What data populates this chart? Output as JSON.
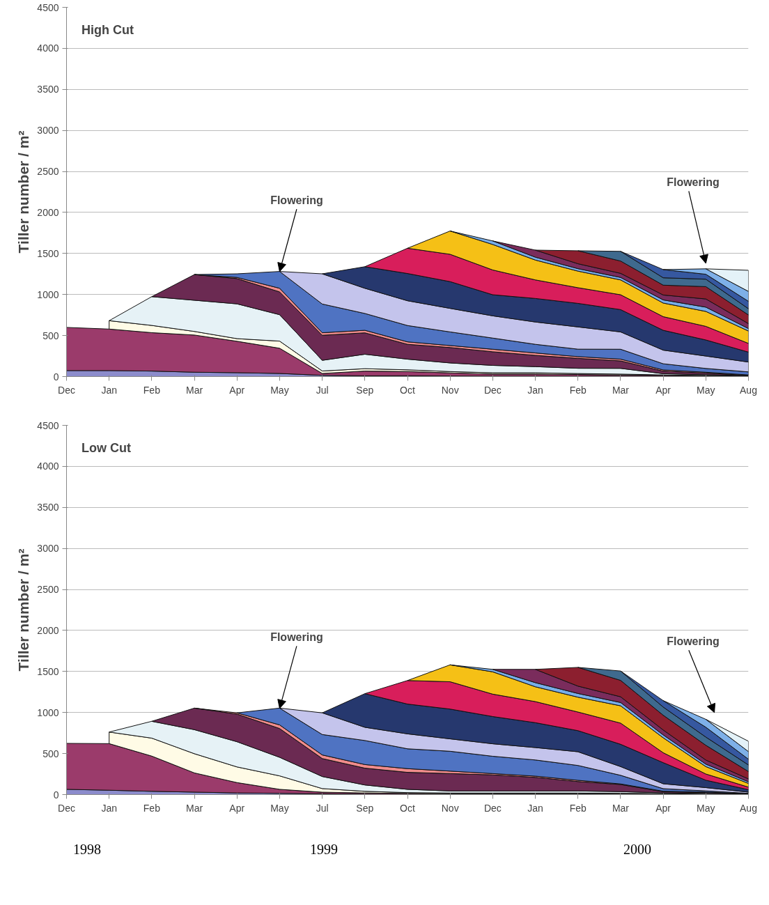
{
  "chart_data": [
    {
      "type": "area",
      "stacked": true,
      "title": "High Cut",
      "ylabel": "Tiller number / m²",
      "categories": [
        "Dec",
        "Jan",
        "Feb",
        "Mar",
        "Apr",
        "May",
        "Jul",
        "Sep",
        "Oct",
        "Nov",
        "Dec",
        "Jan",
        "Feb",
        "Mar",
        "Apr",
        "May",
        "Aug"
      ],
      "ylim": [
        0,
        4500
      ],
      "yticks": [
        0,
        500,
        1000,
        1500,
        2000,
        2500,
        3000,
        3500,
        4000,
        4500
      ],
      "grid": "y",
      "annotations": [
        {
          "text": "Flowering",
          "x": "May",
          "y": 1280
        },
        "Flowering"
      ],
      "series": [
        {
          "color": "#8c8ccc",
          "values": [
            73,
            73,
            67,
            53,
            47,
            38,
            15,
            9,
            10,
            6,
            5,
            5,
            5,
            5,
            5,
            3,
            0
          ]
        },
        {
          "color": "#9b3b6b",
          "values": [
            526,
            506,
            468,
            453,
            383,
            307,
            23,
            58,
            51,
            39,
            25,
            25,
            20,
            15,
            10,
            5,
            0
          ]
        },
        {
          "color": "#fffbe6",
          "values": [
            null,
            102,
            88,
            44,
            32,
            87,
            30,
            29,
            21,
            16,
            16,
            16,
            12,
            10,
            5,
            5,
            5
          ]
        },
        {
          "color": "#e6f2f6",
          "values": [
            null,
            0,
            351,
            380,
            424,
            322,
            130,
            176,
            130,
            105,
            90,
            75,
            64,
            70,
            15,
            10,
            5
          ]
        },
        {
          "color": "#6b2a52",
          "values": [
            null,
            null,
            0,
            313,
            308,
            278,
            305,
            261,
            181,
            188,
            166,
            137,
            121,
            91,
            31,
            20,
            5
          ]
        },
        {
          "color": "#f08c8c",
          "values": [
            null,
            null,
            null,
            0,
            14,
            44,
            31,
            31,
            30,
            24,
            31,
            30,
            21,
            21,
            15,
            10,
            5
          ]
        },
        {
          "color": "#4f73c2",
          "values": [
            null,
            null,
            null,
            0,
            44,
            205,
            350,
            205,
            199,
            166,
            136,
            105,
            91,
            121,
            75,
            46,
            37
          ]
        },
        {
          "color": "#c4c4ec",
          "values": [
            null,
            null,
            null,
            null,
            null,
            0,
            368,
            307,
            302,
            287,
            271,
            272,
            271,
            211,
            166,
            151,
            120
          ]
        },
        {
          "color": "#26386e",
          "values": [
            null,
            null,
            null,
            null,
            null,
            null,
            0,
            263,
            332,
            326,
            257,
            287,
            287,
            272,
            242,
            196,
            121
          ]
        },
        {
          "color": "#d81e5b",
          "values": [
            null,
            null,
            null,
            null,
            null,
            null,
            null,
            0,
            308,
            333,
            302,
            226,
            191,
            181,
            166,
            166,
            106
          ]
        },
        {
          "color": "#f5c016",
          "values": [
            null,
            null,
            null,
            null,
            null,
            null,
            null,
            null,
            0,
            284,
            311,
            242,
            202,
            181,
            166,
            182,
            151
          ]
        },
        {
          "color": "#78aee8",
          "values": [
            null,
            null,
            null,
            null,
            null,
            null,
            null,
            null,
            null,
            0,
            43,
            35,
            30,
            30,
            38,
            52,
            30
          ]
        },
        {
          "color": "#7a2c5c",
          "values": [
            null,
            null,
            null,
            null,
            null,
            null,
            null,
            null,
            null,
            null,
            0,
            86,
            60,
            50,
            60,
            100,
            60
          ]
        },
        {
          "color": "#8c1f2f",
          "values": [
            null,
            null,
            null,
            null,
            null,
            null,
            null,
            null,
            null,
            null,
            null,
            0,
            158,
            150,
            120,
            150,
            106
          ]
        },
        {
          "color": "#3f6a8e",
          "values": [
            null,
            null,
            null,
            null,
            null,
            null,
            null,
            null,
            null,
            null,
            null,
            null,
            0,
            118,
            90,
            91,
            76
          ]
        },
        {
          "color": "#3658a0",
          "values": [
            null,
            null,
            null,
            null,
            null,
            null,
            null,
            null,
            null,
            null,
            null,
            null,
            null,
            0,
            100,
            60,
            90
          ]
        },
        {
          "color": "#7eb0e8",
          "values": [
            null,
            null,
            null,
            null,
            null,
            null,
            null,
            null,
            null,
            null,
            null,
            null,
            null,
            null,
            0,
            66,
            121
          ]
        },
        {
          "color": "#e4f2f8",
          "values": [
            null,
            null,
            null,
            null,
            null,
            null,
            null,
            null,
            null,
            null,
            null,
            null,
            null,
            null,
            null,
            0,
            257
          ]
        }
      ]
    },
    {
      "type": "area",
      "stacked": true,
      "title": "Low Cut",
      "ylabel": "Tiller number / m²",
      "categories": [
        "Dec",
        "Jan",
        "Feb",
        "Mar",
        "Apr",
        "May",
        "Jul",
        "Sep",
        "Oct",
        "Nov",
        "Dec",
        "Jan",
        "Feb",
        "Mar",
        "Apr",
        "May",
        "Aug"
      ],
      "ylim": [
        0,
        4500
      ],
      "yticks": [
        0,
        500,
        1000,
        1500,
        2000,
        2500,
        3000,
        3500,
        4000,
        4500
      ],
      "grid": "y",
      "annotations": [
        {
          "text": "Flowering",
          "x": "May",
          "y": 1050
        },
        "Flowering",
        "1998",
        "1999",
        "2000"
      ],
      "series": [
        {
          "color": "#8c8ccc",
          "values": [
            64,
            53,
            40,
            30,
            20,
            15,
            10,
            5,
            4,
            4,
            4,
            4,
            4,
            3,
            3,
            0,
            0
          ]
        },
        {
          "color": "#9b3b6b",
          "values": [
            560,
            568,
            429,
            234,
            126,
            49,
            19,
            15,
            10,
            5,
            5,
            5,
            5,
            3,
            3,
            0,
            0
          ]
        },
        {
          "color": "#fffbe6",
          "values": [
            null,
            141,
            219,
            234,
            191,
            164,
            44,
            20,
            10,
            10,
            10,
            10,
            10,
            10,
            5,
            5,
            0
          ]
        },
        {
          "color": "#e6f2f6",
          "values": [
            null,
            0,
            205,
            293,
            307,
            226,
            147,
            77,
            40,
            25,
            25,
            25,
            25,
            20,
            10,
            10,
            5
          ]
        },
        {
          "color": "#6b2a52",
          "values": [
            null,
            null,
            0,
            263,
            337,
            351,
            219,
            205,
            207,
            212,
            196,
            166,
            115,
            87,
            15,
            10,
            5
          ]
        },
        {
          "color": "#f08c8c",
          "values": [
            null,
            null,
            null,
            0,
            15,
            44,
            44,
            44,
            45,
            30,
            16,
            15,
            15,
            7,
            5,
            5,
            0
          ]
        },
        {
          "color": "#4f73c2",
          "values": [
            null,
            null,
            null,
            null,
            0,
            205,
            249,
            293,
            242,
            242,
            211,
            197,
            181,
            105,
            31,
            15,
            5
          ]
        },
        {
          "color": "#c4c4ec",
          "values": [
            null,
            null,
            null,
            null,
            null,
            0,
            264,
            161,
            182,
            151,
            152,
            151,
            167,
            106,
            60,
            40,
            15
          ]
        },
        {
          "color": "#26386e",
          "values": [
            null,
            null,
            null,
            null,
            null,
            null,
            0,
            410,
            363,
            363,
            332,
            303,
            257,
            272,
            257,
            90,
            30
          ]
        },
        {
          "color": "#d81e5b",
          "values": [
            null,
            null,
            null,
            null,
            null,
            null,
            null,
            0,
            287,
            333,
            273,
            257,
            227,
            258,
            121,
            76,
            31
          ]
        },
        {
          "color": "#f5c016",
          "values": [
            null,
            null,
            null,
            null,
            null,
            null,
            null,
            null,
            0,
            206,
            272,
            181,
            181,
            211,
            182,
            90,
            45
          ]
        },
        {
          "color": "#78aee8",
          "values": [
            null,
            null,
            null,
            null,
            null,
            null,
            null,
            null,
            null,
            0,
            30,
            50,
            45,
            40,
            35,
            30,
            20
          ]
        },
        {
          "color": "#7a2c5c",
          "values": [
            null,
            null,
            null,
            null,
            null,
            null,
            null,
            null,
            null,
            null,
            0,
            162,
            90,
            70,
            60,
            50,
            35
          ]
        },
        {
          "color": "#8c1f2f",
          "values": [
            null,
            null,
            null,
            null,
            null,
            null,
            null,
            null,
            null,
            null,
            null,
            0,
            228,
            200,
            180,
            180,
            90
          ]
        },
        {
          "color": "#3f6a8e",
          "values": [
            null,
            null,
            null,
            null,
            null,
            null,
            null,
            null,
            null,
            null,
            null,
            null,
            0,
            114,
            100,
            100,
            80
          ]
        },
        {
          "color": "#3658a0",
          "values": [
            null,
            null,
            null,
            null,
            null,
            null,
            null,
            null,
            null,
            null,
            null,
            null,
            null,
            0,
            78,
            120,
            70
          ]
        },
        {
          "color": "#7eb0e8",
          "values": [
            null,
            null,
            null,
            null,
            null,
            null,
            null,
            null,
            null,
            null,
            null,
            null,
            null,
            null,
            0,
            96,
            93
          ]
        },
        {
          "color": "#e4f2f8",
          "values": [
            null,
            null,
            null,
            null,
            null,
            null,
            null,
            null,
            null,
            null,
            null,
            null,
            null,
            null,
            null,
            0,
            126
          ]
        }
      ]
    }
  ]
}
